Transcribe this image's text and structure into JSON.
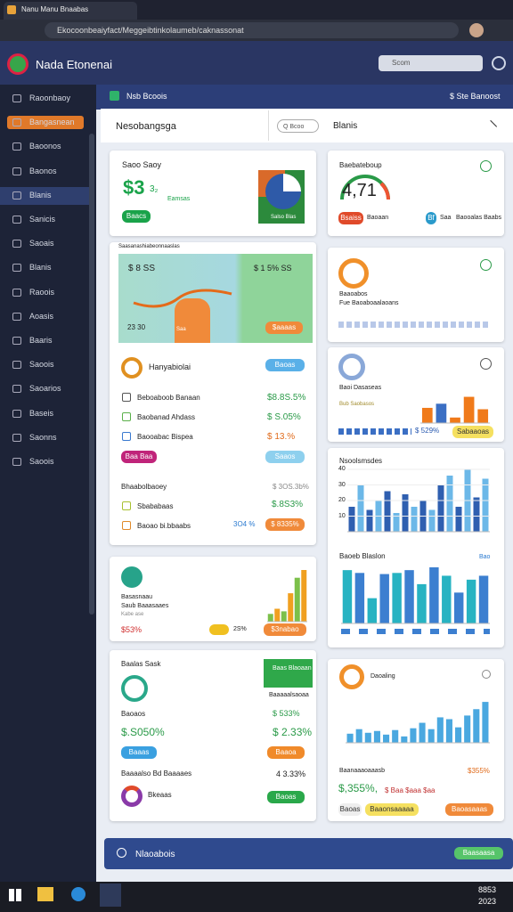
{
  "browser": {
    "tab_title": "Nanu Manu Bnaabas",
    "url": "Ekocoonbeaiyfact/Meggeibtinkolaumeb/caknassonat"
  },
  "app": {
    "title": "Nada Etonenai",
    "search": "Scom"
  },
  "sidebar": [
    "Raoonbaoy",
    "Bangasnean",
    "Baoonos",
    "Baonos",
    "Blanis",
    "Sanicis",
    "Saoais",
    "Blanis",
    "Raoois",
    "Aoasis",
    "Baaris",
    "Saoois",
    "Saoarios",
    "Baseis",
    "Saonns",
    "Saoois"
  ],
  "topbar": {
    "left": "Nsb Bcoois",
    "right": "$ Ste Banoost"
  },
  "panel": {
    "title": "Nesobangsga",
    "search": "Q Bcoo",
    "tab": "Blanis"
  },
  "card_sales": {
    "title": "Saoo Saoy",
    "value": "$3",
    "sub": "3₂",
    "note": "Eamsas",
    "button": "Baacs",
    "pie_label": "Salso Blas"
  },
  "card_gauge": {
    "title": "Baebateboup",
    "value": "4,71",
    "pill": "Bsaiss",
    "note": "Baoaan",
    "tag": "Bf",
    "tag2": "Saa",
    "note2": "Baooalas Baabs"
  },
  "card_hero": {
    "header": "Saasanashiabeonnaaslas",
    "left_value": "$ 8 SS",
    "right_value": "$ 1 5% SS",
    "axis": "23 30",
    "tag": "Saa",
    "pill": "$aaaas"
  },
  "card_list": {
    "title": "Hanyabiolai",
    "button": "Baoas",
    "rows": [
      [
        "Beboaboob Banaan",
        "$8.8S.5%"
      ],
      [
        "Baobanad Ahdass",
        "$ S.05%"
      ],
      [
        "Baooabac Bispea",
        "$ 13.%"
      ]
    ],
    "pill_left": "Baa Baa",
    "pill_right": "Saaos",
    "section": "Bhaabolbaoey",
    "section_value": "$ 3OS.3b%",
    "rows2": [
      [
        "Sbababaas",
        "$.8S3%"
      ],
      [
        "Baoao bi.bbaabs",
        "3O4 %"
      ]
    ],
    "pill_value": "$ 8335%"
  },
  "card_ring": {
    "title": "Baaoabos",
    "sub": "Fue Baoaboaalaoans"
  },
  "card_ring2": {
    "title": "Baoi Dasaseas",
    "sub": "Bub Saobasos",
    "value": "$ 529%",
    "pill": "Sabaaoas",
    "chart": {
      "values": [
        55,
        70,
        20,
        95,
        50
      ],
      "colors": [
        "#f07a1a",
        "#3b6fc4",
        "#f07a1a",
        "#f07a1a",
        "#f07a1a"
      ],
      "ylim": [
        0,
        100
      ]
    }
  },
  "chart_a": {
    "title": "Nsoolsmsdes",
    "ylim": [
      0,
      40
    ],
    "yticks": [
      10,
      20,
      30,
      40
    ],
    "values": [
      16,
      30,
      14,
      20,
      26,
      12,
      24,
      16,
      20,
      14,
      30,
      36,
      16,
      40,
      22,
      34
    ],
    "colors": [
      "#2f5fb0",
      "#6cb8e8"
    ]
  },
  "chart_b": {
    "title": "Baoeb Blaslon",
    "tag": "Bao",
    "ylim": [
      0,
      100
    ],
    "values": [
      95,
      90,
      45,
      88,
      90,
      95,
      70,
      100,
      85,
      55,
      78,
      85
    ],
    "colors": [
      "#27b3c2",
      "#3c7fd0"
    ]
  },
  "card_bars": {
    "title": "Basasnaau",
    "sub": "Saub Baaasaaes",
    "note": "Kabe ase",
    "value": "$53%",
    "value2": "2S%",
    "pill": "$3nabao",
    "chart": {
      "values": [
        15,
        25,
        20,
        55,
        85,
        100
      ],
      "colors": [
        "#7cc04a",
        "#f0a020"
      ],
      "ylim": [
        0,
        100
      ]
    }
  },
  "card_task": {
    "title": "Baalas Sask",
    "banner": "Baas Blaoaan",
    "banner2": "Baaaaalsaoaa",
    "label1": "Baoaos",
    "value1": "$ 533%",
    "big": "$.S050%",
    "big2": "$ 2.33%",
    "pill1": "Baaas",
    "pill2": "Baaoa",
    "row": "Baaaalso Bd Baaaaes",
    "row_value": "4 3.33%",
    "pill3": "Baooaa",
    "row2": "Bkeaas",
    "pill4": "Baoas"
  },
  "card_trend": {
    "title": "Daoaling",
    "sub": "Baanaaaoaaasb",
    "value": "$355%",
    "big": "$,355%,",
    "mid": "$ Baa $aaa $aa",
    "pill1": "Baoas",
    "pill2": "Baaonsaaaaa",
    "pill3": "Baoasaaas",
    "chart": {
      "values": [
        20,
        30,
        22,
        26,
        18,
        28,
        14,
        32,
        44,
        30,
        56,
        52,
        34,
        60,
        74,
        90
      ],
      "colors": [
        "#4aa8e0"
      ],
      "ylim": [
        0,
        100
      ]
    }
  },
  "footer": {
    "title": "Nlaoabois",
    "button": "Baasaasa"
  },
  "taskbar": {
    "time": "8853",
    "date": "2023"
  }
}
